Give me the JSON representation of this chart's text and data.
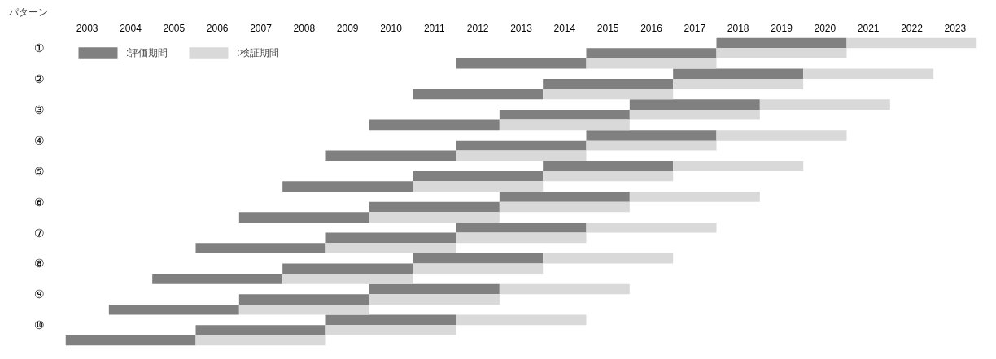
{
  "chart_data": {
    "type": "bar",
    "orientation": "horizontal",
    "ylabel": "パターン",
    "categories": [
      "①",
      null,
      null,
      "②",
      null,
      null,
      "③",
      null,
      null,
      "④",
      null,
      null,
      "⑤",
      null,
      null,
      "⑥",
      null,
      null,
      "⑦",
      null,
      null,
      "⑧",
      null,
      null,
      "⑨",
      null,
      null,
      "⑩",
      null,
      null
    ],
    "series": [
      {
        "name": ":評価期間",
        "color": "#808080",
        "base": [
          2018,
          2015,
          2012,
          2017,
          2014,
          2011,
          2016,
          2013,
          2010,
          2015,
          2012,
          2009,
          2014,
          2011,
          2008,
          2013,
          2010,
          2007,
          2012,
          2009,
          2006,
          2011,
          2008,
          2005,
          2010,
          2007,
          2004,
          2009,
          2006,
          2003
        ],
        "values": [
          3,
          3,
          3,
          3,
          3,
          3,
          3,
          3,
          3,
          3,
          3,
          3,
          3,
          3,
          3,
          3,
          3,
          3,
          3,
          3,
          3,
          3,
          3,
          3,
          3,
          3,
          3,
          3,
          3,
          3
        ]
      },
      {
        "name": ":検証期間",
        "color": "#d9d9d9",
        "base": [
          2021,
          2018,
          2015,
          2020,
          2017,
          2014,
          2019,
          2016,
          2013,
          2018,
          2015,
          2012,
          2017,
          2014,
          2011,
          2016,
          2013,
          2010,
          2015,
          2012,
          2009,
          2014,
          2011,
          2008,
          2013,
          2010,
          2007,
          2012,
          2009,
          2006
        ],
        "values": [
          3,
          3,
          3,
          3,
          3,
          3,
          3,
          3,
          3,
          3,
          3,
          3,
          3,
          3,
          3,
          3,
          3,
          3,
          3,
          3,
          3,
          3,
          3,
          3,
          3,
          3,
          3,
          3,
          3,
          3
        ]
      }
    ],
    "xlim": [
      2003,
      2024
    ],
    "xticks": [
      {
        "value": 2003.5,
        "label": "2003"
      },
      {
        "value": 2004.5,
        "label": "2004"
      },
      {
        "value": 2005.5,
        "label": "2005"
      },
      {
        "value": 2006.5,
        "label": "2006"
      },
      {
        "value": 2007.5,
        "label": "2007"
      },
      {
        "value": 2008.5,
        "label": "2008"
      },
      {
        "value": 2009.5,
        "label": "2009"
      },
      {
        "value": 2010.5,
        "label": "2010"
      },
      {
        "value": 2011.5,
        "label": "2011"
      },
      {
        "value": 2012.5,
        "label": "2012"
      },
      {
        "value": 2013.5,
        "label": "2013"
      },
      {
        "value": 2014.5,
        "label": "2014"
      },
      {
        "value": 2015.5,
        "label": "2015"
      },
      {
        "value": 2016.5,
        "label": "2016"
      },
      {
        "value": 2017.5,
        "label": "2017"
      },
      {
        "value": 2018.5,
        "label": "2018"
      },
      {
        "value": 2019.5,
        "label": "2019"
      },
      {
        "value": 2020.5,
        "label": "2020"
      },
      {
        "value": 2021.5,
        "label": "2021"
      },
      {
        "value": 2022.5,
        "label": "2022"
      },
      {
        "value": 2023.5,
        "label": "2023"
      }
    ],
    "grid": false,
    "legend": "top left"
  }
}
